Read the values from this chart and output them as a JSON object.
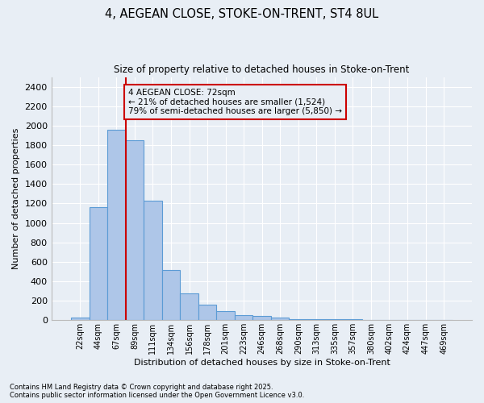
{
  "title_line1": "4, AEGEAN CLOSE, STOKE-ON-TRENT, ST4 8UL",
  "title_line2": "Size of property relative to detached houses in Stoke-on-Trent",
  "xlabel": "Distribution of detached houses by size in Stoke-on-Trent",
  "ylabel": "Number of detached properties",
  "bar_values": [
    30,
    1160,
    1960,
    1850,
    1230,
    520,
    275,
    160,
    90,
    50,
    40,
    25,
    10,
    10,
    10,
    10,
    5,
    5,
    5,
    5,
    5
  ],
  "bin_labels": [
    "22sqm",
    "44sqm",
    "67sqm",
    "89sqm",
    "111sqm",
    "134sqm",
    "156sqm",
    "178sqm",
    "201sqm",
    "223sqm",
    "246sqm",
    "268sqm",
    "290sqm",
    "313sqm",
    "335sqm",
    "357sqm",
    "380sqm",
    "402sqm",
    "424sqm",
    "447sqm",
    "469sqm"
  ],
  "bar_color": "#aec6e8",
  "bar_edgecolor": "#5b9bd5",
  "bg_color": "#e8eef5",
  "grid_color": "#ffffff",
  "vline_color": "#cc0000",
  "annotation_text": "4 AEGEAN CLOSE: 72sqm\n← 21% of detached houses are smaller (1,524)\n79% of semi-detached houses are larger (5,850) →",
  "annotation_box_color": "#cc0000",
  "ylim": [
    0,
    2500
  ],
  "yticks": [
    0,
    200,
    400,
    600,
    800,
    1000,
    1200,
    1400,
    1600,
    1800,
    2000,
    2200,
    2400
  ],
  "footer_line1": "Contains HM Land Registry data © Crown copyright and database right 2025.",
  "footer_line2": "Contains public sector information licensed under the Open Government Licence v3.0."
}
